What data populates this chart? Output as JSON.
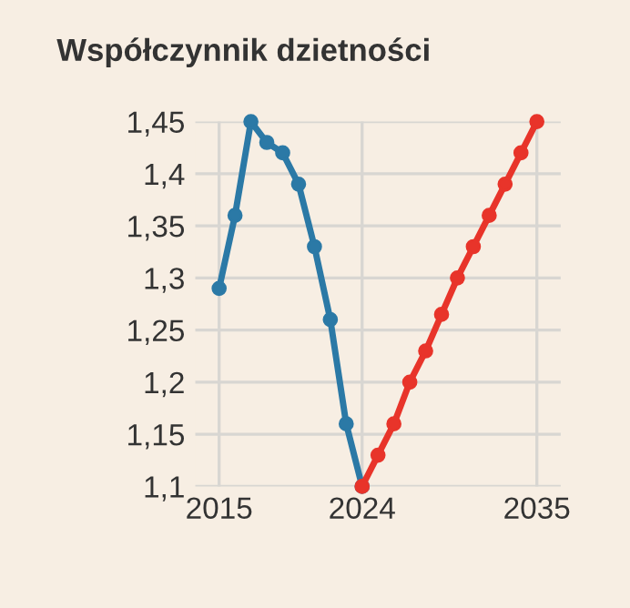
{
  "chart_data": {
    "type": "line",
    "title": "Współczynnik dzietności",
    "marker": "circle",
    "grid": true,
    "series": [
      {
        "color": "#2b79a6",
        "x": [
          2015,
          2016,
          2017,
          2018,
          2019,
          2020,
          2021,
          2022,
          2023,
          2024
        ],
        "values": [
          1.29,
          1.36,
          1.45,
          1.43,
          1.42,
          1.39,
          1.33,
          1.26,
          1.16,
          1.1
        ]
      },
      {
        "color": "#e8342a",
        "x": [
          2024,
          2025,
          2026,
          2027,
          2028,
          2029,
          2030,
          2031,
          2032,
          2033,
          2034,
          2035
        ],
        "values": [
          1.1,
          1.13,
          1.16,
          1.2,
          1.23,
          1.265,
          1.3,
          1.33,
          1.36,
          1.39,
          1.42,
          1.45
        ]
      }
    ],
    "xlim": [
      2013.5,
      2036.5
    ],
    "xticks": [
      2015,
      2024,
      2035
    ],
    "ylim": [
      1.1,
      1.45
    ],
    "yticks": [
      {
        "value": 1.1,
        "label": "1,1"
      },
      {
        "value": 1.15,
        "label": "1,15"
      },
      {
        "value": 1.2,
        "label": "1,2"
      },
      {
        "value": 1.25,
        "label": "1,25"
      },
      {
        "value": 1.3,
        "label": "1,3"
      },
      {
        "value": 1.35,
        "label": "1,35"
      },
      {
        "value": 1.4,
        "label": "1,4"
      },
      {
        "value": 1.45,
        "label": "1,45"
      }
    ]
  }
}
